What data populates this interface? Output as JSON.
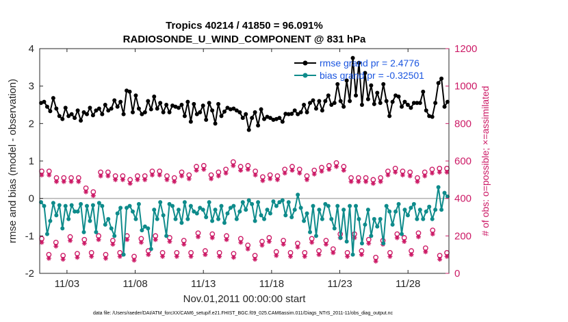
{
  "chart_data": {
    "type": "line",
    "title": "Tropics 40214 / 41850 = 96.091%",
    "subtitle": "RADIOSONDE_U_WIND_COMPONENT @ 831 hPa",
    "xlabel": "Nov.01,2011 00:00:00 start",
    "ylabel": "rmse and bias (model - observation)",
    "y2label": "# of obs: o=possible; ×=assimilated",
    "xlim": [
      0,
      30
    ],
    "ylim": [
      -2,
      4
    ],
    "y2lim": [
      0,
      1200
    ],
    "x_ticks": [
      2,
      7,
      12,
      17,
      22,
      27
    ],
    "x_tick_labels": [
      "11/03",
      "11/08",
      "11/13",
      "11/18",
      "11/23",
      "11/28"
    ],
    "y_ticks": [
      -2,
      -1,
      0,
      1,
      2,
      3,
      4
    ],
    "y2_ticks": [
      0,
      200,
      400,
      600,
      800,
      1000,
      1200
    ],
    "legend_position": "top-right",
    "footer": "data file: /Users/raeder/DAI/ATM_forcXX/CAM6_setup/f.e21.FHIST_BGC.f09_025.CAM6assim.011/Diags_NTrS_2011-11/obs_diag_output.nc",
    "series": [
      {
        "name": "rmse grand pr = 2.4776",
        "color": "#000000",
        "axis": "left",
        "values": [
          2.55,
          2.58,
          2.45,
          2.33,
          2.68,
          2.4,
          2.2,
          2.12,
          2.42,
          2.2,
          2.25,
          2.15,
          2.35,
          2.08,
          2.3,
          2.25,
          2.42,
          2.22,
          2.35,
          2.4,
          2.25,
          2.5,
          2.35,
          2.4,
          2.62,
          2.45,
          2.58,
          2.25,
          2.88,
          2.85,
          2.3,
          2.75,
          2.4,
          2.25,
          2.3,
          2.6,
          2.38,
          2.72,
          2.4,
          2.55,
          2.3,
          2.5,
          2.3,
          2.48,
          2.45,
          2.42,
          2.5,
          2.2,
          2.58,
          2.05,
          2.52,
          2.25,
          2.3,
          2.48,
          2.1,
          2.55,
          2.35,
          2.0,
          2.52,
          2.2,
          2.32,
          2.42,
          2.38,
          2.4,
          2.35,
          2.3,
          2.15,
          2.25,
          1.83,
          2.15,
          2.3,
          1.95,
          2.38,
          2.12,
          2.18,
          2.15,
          2.1,
          2.12,
          2.15,
          2.05,
          2.26,
          2.25,
          2.26,
          2.35,
          2.25,
          2.3,
          2.5,
          2.3,
          2.55,
          2.62,
          2.4,
          2.6,
          2.35,
          2.6,
          2.75,
          2.5,
          2.55,
          3.05,
          2.6,
          2.45,
          3.15,
          2.6,
          3.75,
          2.75,
          3.62,
          2.5,
          3.35,
          2.65,
          3.02,
          2.52,
          2.82,
          2.55,
          3.05,
          2.6,
          2.2,
          2.58,
          2.75,
          2.72,
          2.45,
          2.58,
          2.5,
          2.42,
          2.55,
          2.55,
          2.55,
          2.85,
          2.35,
          2.2,
          2.18,
          2.55,
          3.08,
          3.2,
          2.45,
          2.58
        ]
      },
      {
        "name": "bias grand pr = -0.32501",
        "color": "#0e8b8b",
        "axis": "left",
        "values": [
          -0.1,
          -0.2,
          -0.95,
          -0.6,
          -0.12,
          -0.45,
          -0.18,
          -0.8,
          -0.2,
          -0.55,
          -0.18,
          -0.35,
          -0.35,
          -0.15,
          -0.9,
          -0.2,
          -0.6,
          -0.18,
          -0.9,
          -0.12,
          -0.2,
          -0.7,
          -0.55,
          -0.8,
          -1.0,
          -0.4,
          -0.25,
          -1.5,
          -0.25,
          -0.2,
          -0.35,
          -0.55,
          -0.15,
          -0.85,
          -0.75,
          -0.8,
          -1.35,
          -0.3,
          -0.55,
          -0.1,
          -0.45,
          -1.0,
          -0.15,
          -0.2,
          -0.55,
          -0.3,
          -0.65,
          -0.1,
          -0.55,
          -0.2,
          -0.35,
          -0.4,
          -0.25,
          -0.3,
          -0.5,
          -0.1,
          -0.6,
          -0.3,
          -0.55,
          -0.2,
          -0.65,
          -0.4,
          -0.25,
          -0.2,
          -0.55,
          -0.35,
          -0.1,
          -0.3,
          -0.05,
          -0.15,
          -0.6,
          -0.1,
          -0.45,
          -0.55,
          -0.3,
          -0.4,
          -0.08,
          -0.2,
          -0.1,
          -0.05,
          -0.45,
          -0.1,
          -0.5,
          -0.3,
          0.1,
          -0.25,
          -0.6,
          -0.4,
          -0.9,
          -0.2,
          -1.0,
          -0.3,
          -0.55,
          -0.15,
          -0.2,
          -0.55,
          -0.8,
          -0.2,
          -1.05,
          -0.3,
          -1.15,
          -0.2,
          -1.5,
          -0.2,
          -0.55,
          -1.2,
          -0.7,
          -0.3,
          -1.0,
          -0.55,
          -0.75,
          -0.55,
          -1.2,
          -0.2,
          -0.35,
          -0.7,
          -0.35,
          -0.15,
          -0.95,
          -0.3,
          -0.45,
          -0.25,
          -0.15,
          -0.55,
          -0.3,
          -0.55,
          -0.35,
          -0.22,
          -0.55,
          -0.3,
          0.3,
          -0.3,
          0.15,
          0.05
        ]
      }
    ],
    "counts": {
      "possible_upper": [
        545,
        545,
        510,
        510,
        510,
        510,
        455,
        435,
        540,
        540,
        520,
        520,
        500,
        520,
        520,
        545,
        545,
        520,
        510,
        540,
        525,
        570,
        575,
        525,
        540,
        555,
        595,
        570,
        575,
        545,
        515,
        525,
        520,
        555,
        570,
        555,
        520,
        550,
        565,
        575,
        590,
        570,
        510,
        510,
        510,
        500,
        510,
        545,
        560,
        545,
        540,
        510,
        540,
        555,
        560,
        560
      ],
      "assimilated_upper": [
        525,
        525,
        490,
        490,
        490,
        490,
        435,
        415,
        520,
        520,
        500,
        500,
        480,
        500,
        500,
        525,
        525,
        500,
        490,
        520,
        505,
        550,
        555,
        505,
        520,
        535,
        575,
        550,
        555,
        525,
        495,
        505,
        500,
        535,
        550,
        535,
        500,
        530,
        545,
        555,
        570,
        550,
        490,
        490,
        490,
        480,
        490,
        525,
        540,
        525,
        520,
        490,
        520,
        535,
        540,
        540
      ],
      "possible_lower": [
        185,
        100,
        165,
        95,
        195,
        105,
        180,
        110,
        200,
        100,
        175,
        110,
        200,
        90,
        185,
        120,
        200,
        110,
        190,
        110,
        175,
        110,
        215,
        120,
        210,
        110,
        200,
        105,
        185,
        150,
        95,
        170,
        190,
        115,
        175,
        110,
        160,
        110,
        185,
        120,
        175,
        130,
        210,
        110,
        210,
        120,
        180,
        85,
        175,
        110,
        210,
        190,
        120,
        215,
        135,
        230,
        95,
        110
      ],
      "assimilated_lower": [
        165,
        80,
        145,
        75,
        175,
        85,
        160,
        90,
        180,
        80,
        155,
        90,
        180,
        70,
        165,
        100,
        180,
        90,
        170,
        90,
        155,
        90,
        195,
        100,
        190,
        90,
        180,
        85,
        165,
        130,
        75,
        150,
        170,
        95,
        155,
        90,
        140,
        90,
        165,
        100,
        155,
        110,
        190,
        90,
        190,
        100,
        160,
        65,
        155,
        90,
        190,
        170,
        100,
        195,
        115,
        210,
        75,
        90
      ]
    }
  }
}
